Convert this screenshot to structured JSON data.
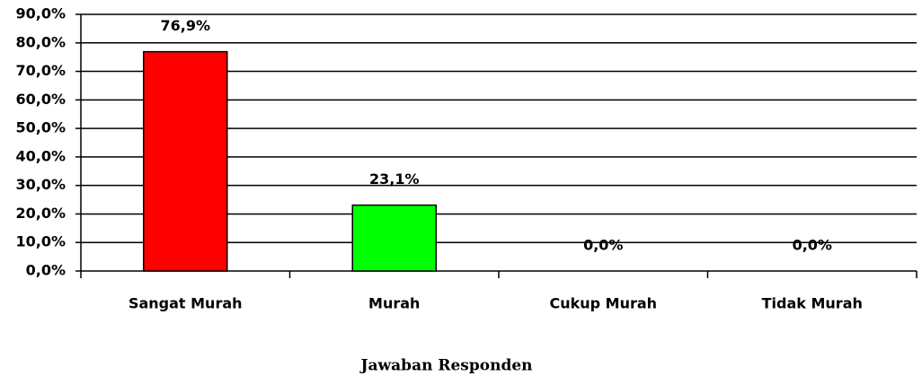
{
  "chart_data": {
    "type": "bar",
    "categories": [
      "Sangat Murah",
      "Murah",
      "Cukup Murah",
      "Tidak Murah"
    ],
    "values": [
      76.9,
      23.1,
      0,
      0
    ],
    "value_labels": [
      "76,9%",
      "23,1%",
      "0,0%",
      "0,0%"
    ],
    "colors": [
      "#ff0000",
      "#00ff00"
    ],
    "xlabel": "Jawaban Responden",
    "ylim": [
      0,
      90
    ],
    "yticks": [
      {
        "value": 0,
        "label": "0,0%"
      },
      {
        "value": 10,
        "label": "10,0%"
      },
      {
        "value": 20,
        "label": "20,0%"
      },
      {
        "value": 30,
        "label": "30,0%"
      },
      {
        "value": 40,
        "label": "40,0%"
      },
      {
        "value": 50,
        "label": "50,0%"
      },
      {
        "value": 60,
        "label": "60,0%"
      },
      {
        "value": 70,
        "label": "70,0%"
      },
      {
        "value": 80,
        "label": "80,0%"
      },
      {
        "value": 90,
        "label": "90,0%"
      }
    ],
    "grid": true
  }
}
